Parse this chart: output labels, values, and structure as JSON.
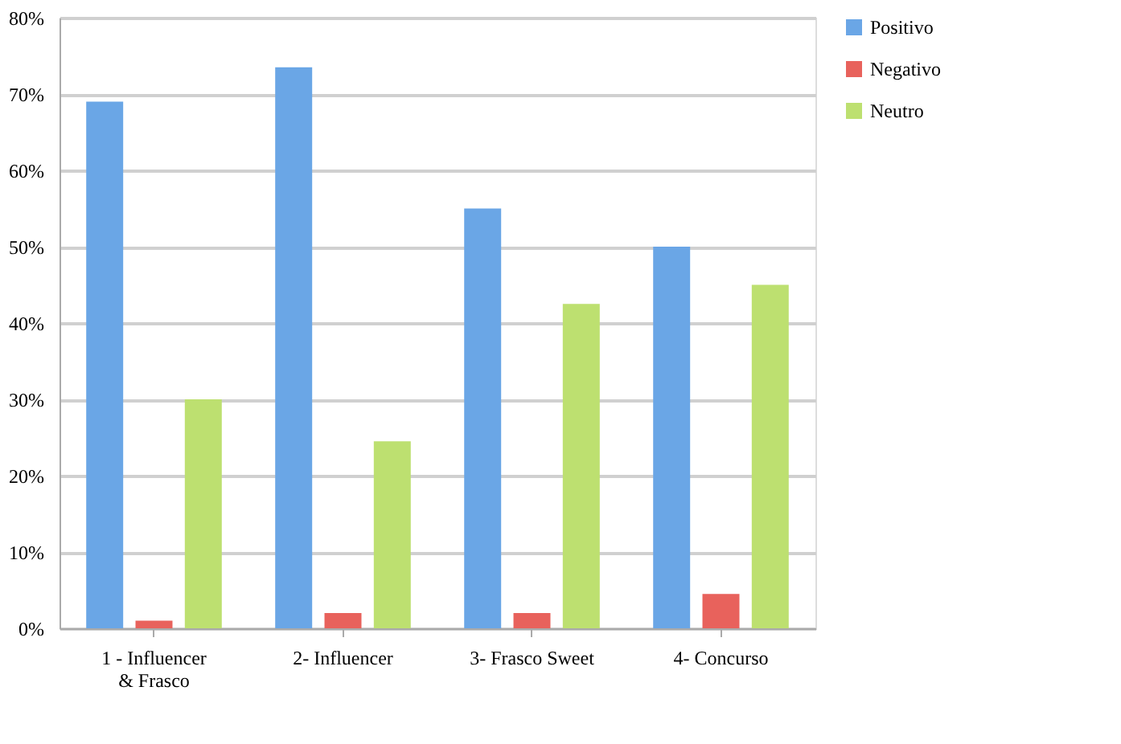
{
  "chart_data": {
    "type": "bar",
    "categories": [
      "1 - Influencer & Frasco",
      "2- Influencer",
      "3- Frasco Sweet",
      "4- Concurso"
    ],
    "series": [
      {
        "name": "Positivo",
        "color": "#6aa6e6",
        "values": [
          69,
          73.5,
          55,
          50
        ]
      },
      {
        "name": "Negativo",
        "color": "#e8625c",
        "values": [
          1,
          2,
          2,
          4.5
        ]
      },
      {
        "name": "Neutro",
        "color": "#bde070",
        "values": [
          30,
          24.5,
          42.5,
          45
        ]
      }
    ],
    "ylim": [
      0,
      80
    ],
    "yticks": [
      {
        "value": 0,
        "label": "0%"
      },
      {
        "value": 10,
        "label": "10%"
      },
      {
        "value": 20,
        "label": "20%"
      },
      {
        "value": 30,
        "label": "30%"
      },
      {
        "value": 40,
        "label": "40%"
      },
      {
        "value": 50,
        "label": "50%"
      },
      {
        "value": 60,
        "label": "60%"
      },
      {
        "value": 70,
        "label": "70%"
      },
      {
        "value": 80,
        "label": "80%"
      }
    ],
    "grid": "y",
    "legend": "right"
  }
}
